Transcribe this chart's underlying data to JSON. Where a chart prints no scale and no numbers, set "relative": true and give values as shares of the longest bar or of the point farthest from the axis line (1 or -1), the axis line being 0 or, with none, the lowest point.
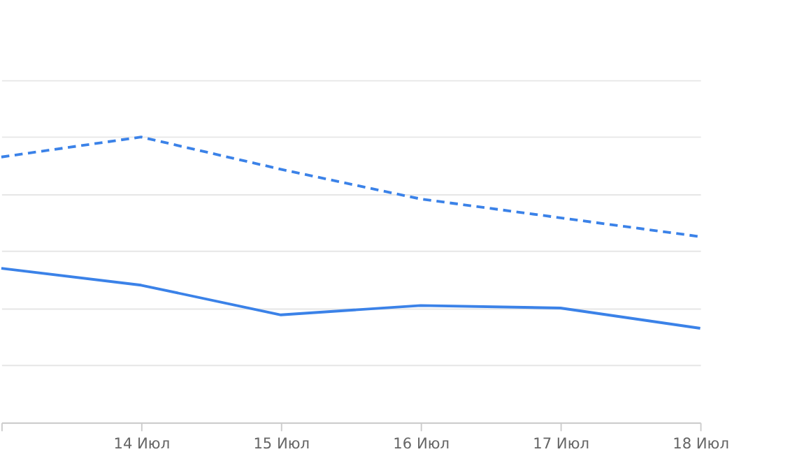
{
  "chart_data": {
    "type": "line",
    "relative": true,
    "grid": "y",
    "categories": [
      null,
      "14 Июл",
      "15 Июл",
      "16 Июл",
      "17 Июл",
      "18 Июл"
    ],
    "series": [
      {
        "color": "#3b82e8",
        "line_style": "dashed",
        "values": [
          0.93,
          1.0,
          0.887,
          0.783,
          0.717,
          0.651
        ]
      },
      {
        "color": "#3b82e8",
        "line_style": "solid",
        "values": [
          0.54,
          0.481,
          0.377,
          0.41,
          0.401,
          0.33
        ]
      }
    ]
  }
}
